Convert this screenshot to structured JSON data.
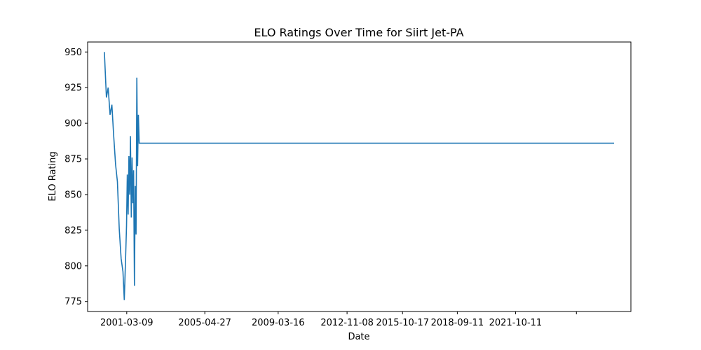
{
  "chart_data": {
    "type": "line",
    "title": "ELO Ratings Over Time for Siirt Jet-PA",
    "xlabel": "Date",
    "ylabel": "ELO Rating",
    "x_ticks": [
      "2001-03-09",
      "2005-04-27",
      "2009-03-16",
      "2012-11-08",
      "2015-10-17",
      "2018-09-11",
      "2021-10-11",
      ""
    ],
    "y_ticks": [
      775,
      800,
      825,
      850,
      875,
      900,
      925,
      950
    ],
    "ylim": [
      768,
      957
    ],
    "grid": false,
    "legend": "none",
    "line_color": "#1f77b4",
    "series": [
      {
        "x": [
          "2000-01-01",
          "2000-02-10",
          "2000-03-15",
          "2000-04-20",
          "2000-05-25",
          "2000-06-30",
          "2000-08-05",
          "2000-09-10",
          "2000-10-15",
          "2000-11-20",
          "2000-12-25",
          "2001-01-20",
          "2001-02-15",
          "2001-03-05",
          "2001-03-20",
          "2001-04-05",
          "2001-04-20",
          "2001-05-05",
          "2001-05-20",
          "2001-06-05",
          "2001-06-20",
          "2001-07-05",
          "2001-07-20",
          "2001-08-05",
          "2001-08-20",
          "2001-09-05",
          "2001-09-20",
          "2001-10-05",
          "2001-10-20",
          "2001-11-05",
          "2001-11-20",
          "2001-12-05",
          "2026-12-31"
        ],
        "y": [
          950,
          918,
          925,
          906,
          913,
          891,
          871,
          859,
          826,
          805,
          796,
          776,
          806,
          828,
          864,
          836,
          877,
          850,
          891,
          834,
          876,
          844,
          867,
          786,
          856,
          822,
          932,
          870,
          906,
          886,
          886,
          886,
          886
        ]
      }
    ]
  }
}
